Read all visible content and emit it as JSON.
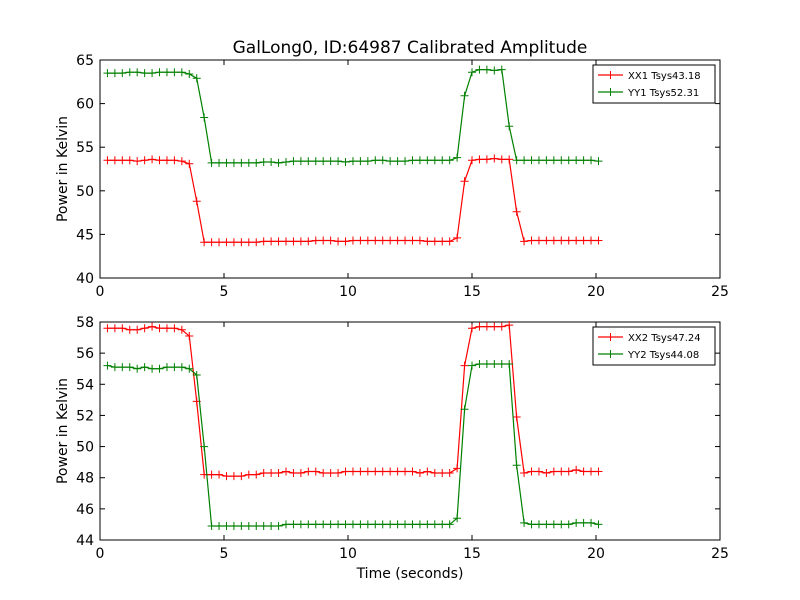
{
  "title": "GalLong0, ID:64987 Calibrated Amplitude",
  "xlabel": "Time (seconds)",
  "colors": {
    "red": "#ff0000",
    "green": "#008000"
  },
  "chart_data": [
    {
      "type": "line",
      "ylabel": "Power in Kelvin",
      "xlim": [
        0,
        25
      ],
      "ylim": [
        40,
        65
      ],
      "xticks": [
        0,
        5,
        10,
        15,
        20,
        25
      ],
      "yticks": [
        40,
        45,
        50,
        55,
        60,
        65
      ],
      "legend_position": "top-right",
      "x": [
        0.3,
        0.6,
        0.9,
        1.2,
        1.5,
        1.8,
        2.1,
        2.4,
        2.7,
        3.0,
        3.3,
        3.6,
        3.9,
        4.2,
        4.5,
        4.8,
        5.1,
        5.4,
        5.7,
        6.0,
        6.3,
        6.6,
        6.9,
        7.2,
        7.5,
        7.8,
        8.1,
        8.4,
        8.7,
        9.0,
        9.3,
        9.6,
        9.9,
        10.2,
        10.5,
        10.8,
        11.1,
        11.4,
        11.7,
        12.0,
        12.3,
        12.6,
        12.9,
        13.2,
        13.5,
        13.8,
        14.1,
        14.4,
        14.7,
        15.0,
        15.3,
        15.6,
        15.9,
        16.2,
        16.5,
        16.8,
        17.1,
        17.4,
        17.7,
        18.0,
        18.3,
        18.6,
        18.9,
        19.2,
        19.5,
        19.8,
        20.1
      ],
      "series": [
        {
          "name": "XX1 Tsys43.18",
          "color": "#ff0000",
          "values": [
            53.5,
            53.5,
            53.5,
            53.5,
            53.4,
            53.5,
            53.6,
            53.5,
            53.5,
            53.5,
            53.4,
            53.1,
            48.8,
            44.1,
            44.1,
            44.1,
            44.1,
            44.1,
            44.1,
            44.1,
            44.1,
            44.2,
            44.2,
            44.2,
            44.2,
            44.2,
            44.2,
            44.2,
            44.3,
            44.3,
            44.3,
            44.2,
            44.2,
            44.3,
            44.3,
            44.3,
            44.3,
            44.3,
            44.3,
            44.3,
            44.3,
            44.3,
            44.3,
            44.2,
            44.2,
            44.2,
            44.2,
            44.6,
            51.1,
            53.5,
            53.6,
            53.6,
            53.7,
            53.6,
            53.6,
            47.6,
            44.2,
            44.3,
            44.3,
            44.3,
            44.3,
            44.3,
            44.3,
            44.3,
            44.3,
            44.3,
            44.3
          ]
        },
        {
          "name": "YY1 Tsys52.31",
          "color": "#008000",
          "values": [
            63.5,
            63.5,
            63.5,
            63.6,
            63.6,
            63.5,
            63.5,
            63.6,
            63.6,
            63.6,
            63.6,
            63.4,
            62.9,
            58.4,
            53.2,
            53.2,
            53.2,
            53.2,
            53.2,
            53.2,
            53.2,
            53.3,
            53.3,
            53.2,
            53.3,
            53.4,
            53.4,
            53.4,
            53.4,
            53.4,
            53.4,
            53.4,
            53.3,
            53.4,
            53.4,
            53.4,
            53.5,
            53.5,
            53.4,
            53.4,
            53.4,
            53.5,
            53.5,
            53.5,
            53.5,
            53.5,
            53.5,
            53.8,
            60.9,
            63.6,
            63.9,
            63.9,
            63.8,
            63.9,
            57.4,
            53.5,
            53.5,
            53.5,
            53.5,
            53.5,
            53.5,
            53.5,
            53.5,
            53.5,
            53.5,
            53.5,
            53.4
          ]
        }
      ]
    },
    {
      "type": "line",
      "ylabel": "Power in Kelvin",
      "xlabel": "Time (seconds)",
      "xlim": [
        0,
        25
      ],
      "ylim": [
        44,
        58
      ],
      "xticks": [
        0,
        5,
        10,
        15,
        20,
        25
      ],
      "yticks": [
        44,
        46,
        48,
        50,
        52,
        54,
        56,
        58
      ],
      "legend_position": "top-right",
      "x": [
        0.3,
        0.6,
        0.9,
        1.2,
        1.5,
        1.8,
        2.1,
        2.4,
        2.7,
        3.0,
        3.3,
        3.6,
        3.9,
        4.2,
        4.5,
        4.8,
        5.1,
        5.4,
        5.7,
        6.0,
        6.3,
        6.6,
        6.9,
        7.2,
        7.5,
        7.8,
        8.1,
        8.4,
        8.7,
        9.0,
        9.3,
        9.6,
        9.9,
        10.2,
        10.5,
        10.8,
        11.1,
        11.4,
        11.7,
        12.0,
        12.3,
        12.6,
        12.9,
        13.2,
        13.5,
        13.8,
        14.1,
        14.4,
        14.7,
        15.0,
        15.3,
        15.6,
        15.9,
        16.2,
        16.5,
        16.8,
        17.1,
        17.4,
        17.7,
        18.0,
        18.3,
        18.6,
        18.9,
        19.2,
        19.5,
        19.8,
        20.1
      ],
      "series": [
        {
          "name": "XX2 Tsys47.24",
          "color": "#ff0000",
          "values": [
            57.6,
            57.6,
            57.6,
            57.5,
            57.5,
            57.6,
            57.7,
            57.6,
            57.6,
            57.6,
            57.5,
            57.1,
            52.9,
            48.2,
            48.2,
            48.2,
            48.1,
            48.1,
            48.1,
            48.2,
            48.2,
            48.3,
            48.3,
            48.3,
            48.4,
            48.3,
            48.3,
            48.4,
            48.4,
            48.3,
            48.3,
            48.3,
            48.4,
            48.4,
            48.4,
            48.4,
            48.4,
            48.4,
            48.4,
            48.4,
            48.4,
            48.4,
            48.3,
            48.4,
            48.3,
            48.3,
            48.3,
            48.6,
            55.2,
            57.6,
            57.7,
            57.7,
            57.7,
            57.7,
            57.8,
            51.9,
            48.3,
            48.4,
            48.4,
            48.3,
            48.4,
            48.4,
            48.4,
            48.5,
            48.4,
            48.4,
            48.4
          ]
        },
        {
          "name": "YY2 Tsys44.08",
          "color": "#008000",
          "values": [
            55.2,
            55.1,
            55.1,
            55.1,
            55.0,
            55.1,
            55.0,
            55.0,
            55.1,
            55.1,
            55.1,
            55.0,
            54.6,
            50.0,
            44.9,
            44.9,
            44.9,
            44.9,
            44.9,
            44.9,
            44.9,
            44.9,
            44.9,
            44.9,
            45.0,
            45.0,
            45.0,
            45.0,
            45.0,
            45.0,
            45.0,
            45.0,
            45.0,
            45.0,
            45.0,
            45.0,
            45.0,
            45.0,
            45.0,
            45.0,
            45.0,
            45.0,
            45.0,
            45.0,
            45.0,
            45.0,
            45.0,
            45.4,
            52.4,
            55.2,
            55.3,
            55.3,
            55.3,
            55.3,
            55.3,
            48.8,
            45.1,
            45.0,
            45.0,
            45.0,
            45.0,
            45.0,
            45.0,
            45.1,
            45.1,
            45.1,
            45.0
          ]
        }
      ]
    }
  ]
}
